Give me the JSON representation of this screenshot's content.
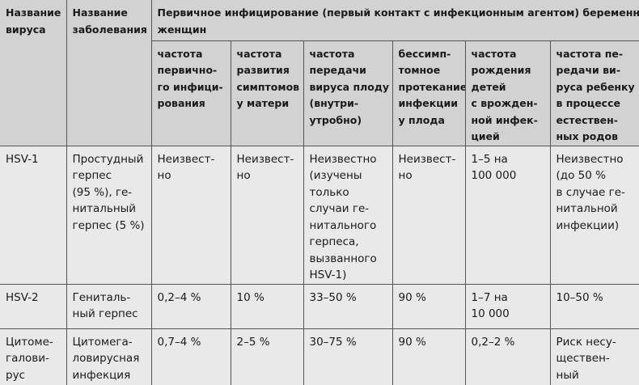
{
  "header": {
    "virus": [
      "Название",
      "вируса"
    ],
    "disease": [
      "Название",
      "заболевания"
    ],
    "group": [
      "Первичное инфицирование (первый контакт с инфекционным агентом) беременных",
      "женщин"
    ],
    "subcols": [
      [
        "частота",
        "первично-",
        "го инфици-",
        "рования"
      ],
      [
        "частота",
        "развития",
        "симптомов",
        "у матери"
      ],
      [
        "частота",
        "передачи",
        "вируса плоду",
        "(внутри-",
        "утробно)"
      ],
      [
        "бессимп-",
        "томное",
        "протекание",
        "инфекции",
        "у плода"
      ],
      [
        "частота",
        "рождения",
        "детей",
        "с врожден-",
        "ной инфек-",
        "цией"
      ],
      [
        "частота пе-",
        "редачи ви-",
        "руса ребенку",
        "в процессе",
        "естествен-",
        "ных родов"
      ]
    ]
  },
  "table": {
    "rows": [
      [
        [
          "HSV-1"
        ],
        [
          "Простудный",
          "герпес",
          "(95 %), ге-",
          "нитальный",
          "герпес (5 %)"
        ],
        [
          "Неизвест-",
          "но"
        ],
        [
          "Неизвест-",
          "но"
        ],
        [
          "Неизвестно",
          "(изучены",
          "только",
          "случаи ге-",
          "нитального",
          "герпеса,",
          "вызванного",
          "HSV-1)"
        ],
        [
          "Неизвест-",
          "но"
        ],
        [
          "1–5 на",
          "100 000"
        ],
        [
          "Неизвестно",
          "(до 50 %",
          "в случае ге-",
          "нитальной",
          "инфекции)"
        ]
      ],
      [
        [
          "HSV-2"
        ],
        [
          "Гениталь-",
          "ный герпес"
        ],
        [
          "0,2–4 %"
        ],
        [
          "10 %"
        ],
        [
          "33–50 %"
        ],
        [
          "90 %"
        ],
        [
          "1–7 на",
          "10 000"
        ],
        [
          "10–50 %"
        ]
      ],
      [
        [
          "Цитоме-",
          "галови-",
          "рус"
        ],
        [
          "Цитомега-",
          "ловирусная",
          "инфекция"
        ],
        [
          "0,7–4 %"
        ],
        [
          "2–5 %"
        ],
        [
          "30–75 %"
        ],
        [
          "90 %"
        ],
        [
          "0,2–2 %"
        ],
        [
          "Риск несу-",
          "ществен-",
          "ный"
        ]
      ]
    ]
  }
}
